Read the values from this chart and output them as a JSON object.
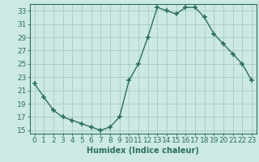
{
  "x": [
    0,
    1,
    2,
    3,
    4,
    5,
    6,
    7,
    8,
    9,
    10,
    11,
    12,
    13,
    14,
    15,
    16,
    17,
    18,
    19,
    20,
    21,
    22,
    23
  ],
  "y": [
    22,
    20,
    18,
    17,
    16.5,
    16,
    15.5,
    15,
    15.5,
    17,
    22.5,
    25,
    29,
    33.5,
    33,
    32.5,
    33.5,
    33.5,
    32,
    29.5,
    28,
    26.5,
    25,
    22.5
  ],
  "line_color": "#2d6e5e",
  "marker": "+",
  "marker_size": 4,
  "bg_color": "#cce9e5",
  "grid_color": "#aacfcb",
  "xlabel": "Humidex (Indice chaleur)",
  "xlim": [
    -0.5,
    23.5
  ],
  "ylim": [
    14.5,
    34
  ],
  "yticks": [
    15,
    17,
    19,
    21,
    23,
    25,
    27,
    29,
    31,
    33
  ],
  "xticks": [
    0,
    1,
    2,
    3,
    4,
    5,
    6,
    7,
    8,
    9,
    10,
    11,
    12,
    13,
    14,
    15,
    16,
    17,
    18,
    19,
    20,
    21,
    22,
    23
  ],
  "xtick_labels": [
    "0",
    "1",
    "2",
    "3",
    "4",
    "5",
    "6",
    "7",
    "8",
    "9",
    "10",
    "11",
    "12",
    "13",
    "14",
    "15",
    "16",
    "17",
    "18",
    "19",
    "20",
    "21",
    "22",
    "23"
  ],
  "ytick_labels": [
    "15",
    "17",
    "19",
    "21",
    "23",
    "25",
    "27",
    "29",
    "31",
    "33"
  ],
  "tick_color": "#2d6e5e",
  "label_fontsize": 7,
  "tick_fontsize": 6.5,
  "line_width": 1.0,
  "marker_color": "#2d6e5e"
}
